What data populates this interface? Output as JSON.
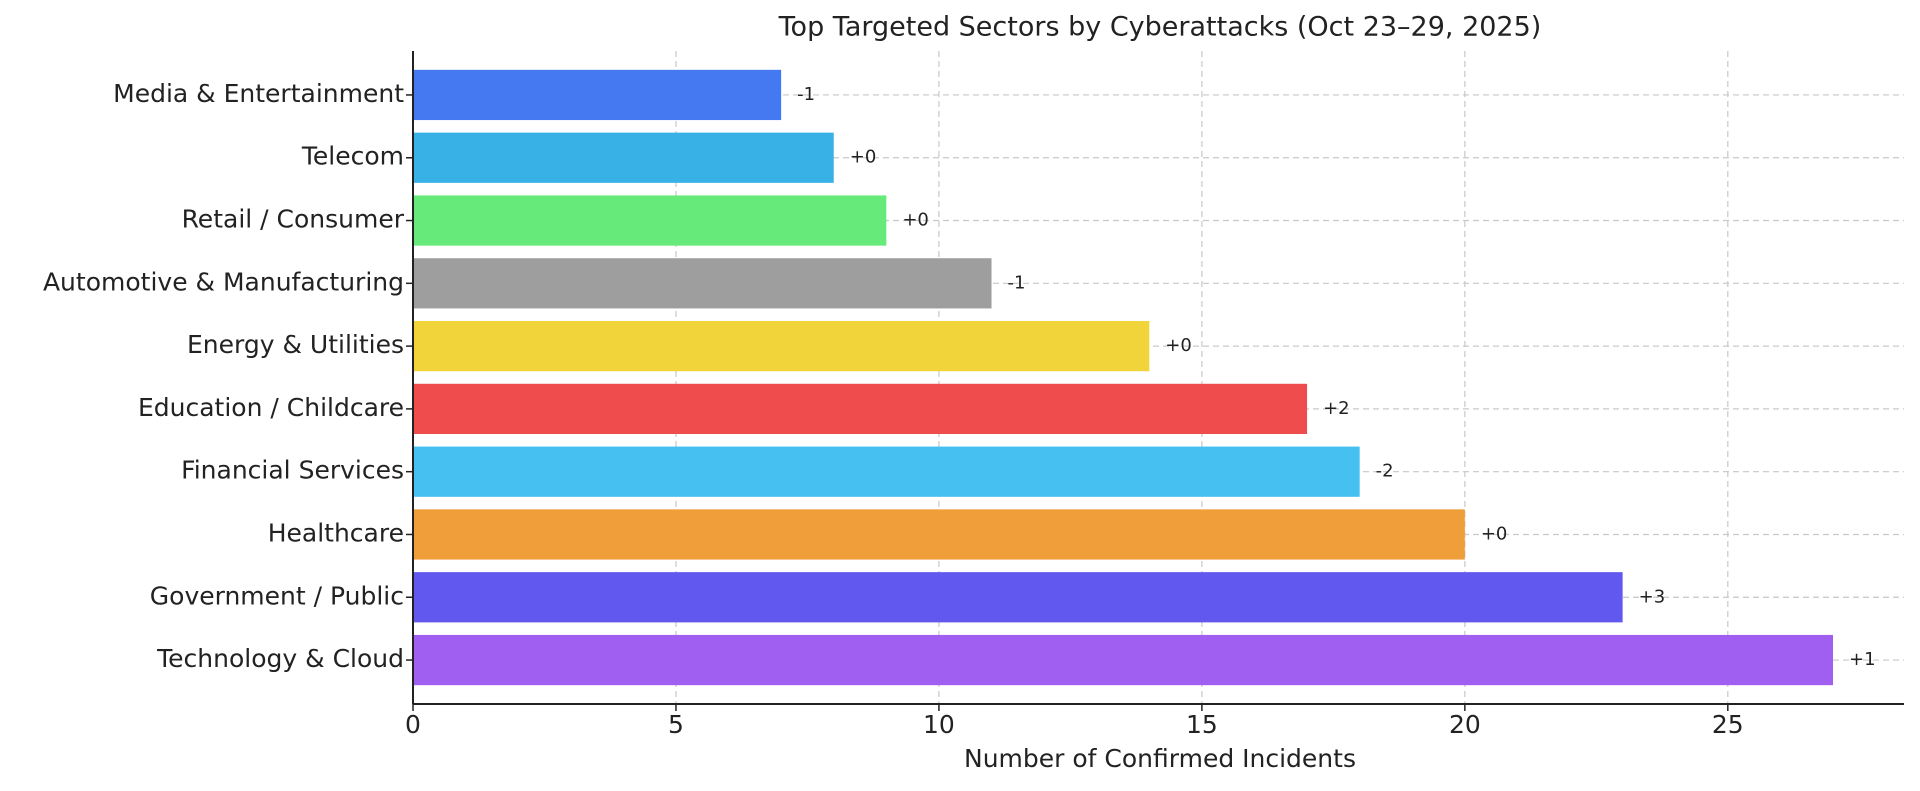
{
  "chart_data": {
    "type": "barh",
    "title": "Top Targeted Sectors by Cyberattacks (Oct 23–29, 2025)",
    "x_label": "Number of Confirmed Incidents",
    "categories": [
      "Technology & Cloud",
      "Government / Public",
      "Healthcare",
      "Financial Services",
      "Education / Childcare",
      "Energy & Utilities",
      "Automotive & Manufacturing",
      "Retail / Consumer",
      "Telecom",
      "Media & Entertainment"
    ],
    "values": [
      27,
      23,
      20,
      18,
      17,
      14,
      11,
      9,
      8,
      7
    ],
    "annotations": [
      "+1",
      "+3",
      "+0",
      "-2",
      "+2",
      "+0",
      "-1",
      "+0",
      "+0",
      "-1"
    ],
    "colors": [
      "#a05ff0",
      "#6058ef",
      "#f09e3a",
      "#45c0f1",
      "#ef4d4d",
      "#f0d43a",
      "#9e9e9e",
      "#66ea7a",
      "#38b2e6",
      "#4479f2"
    ],
    "xlim": [
      0,
      28.35
    ],
    "xticks": [
      0,
      5,
      10,
      15,
      20,
      25
    ],
    "grid": true
  }
}
